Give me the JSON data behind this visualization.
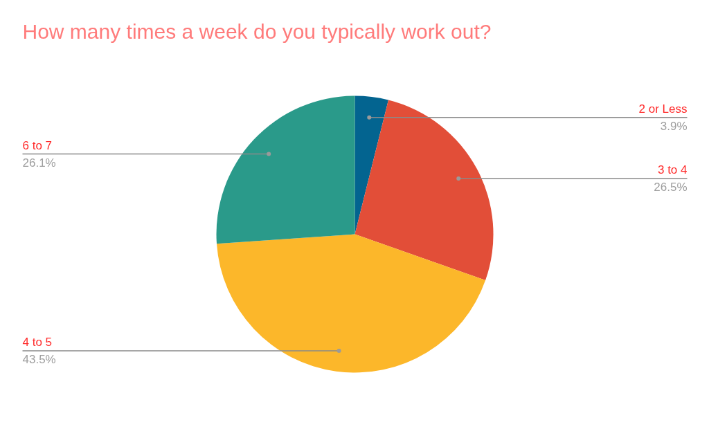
{
  "chart_data": {
    "type": "pie",
    "title": "How many times a week do you typically work out?",
    "categories": [
      "2 or Less",
      "3 to 4",
      "4 to 5",
      "6 to 7"
    ],
    "values": [
      3.9,
      26.5,
      43.5,
      26.1
    ],
    "colors": [
      "#036490",
      "#e24e38",
      "#fcb72a",
      "#2a9a8a"
    ],
    "value_labels": [
      "3.9%",
      "26.5%",
      "43.5%",
      "26.1%"
    ]
  }
}
